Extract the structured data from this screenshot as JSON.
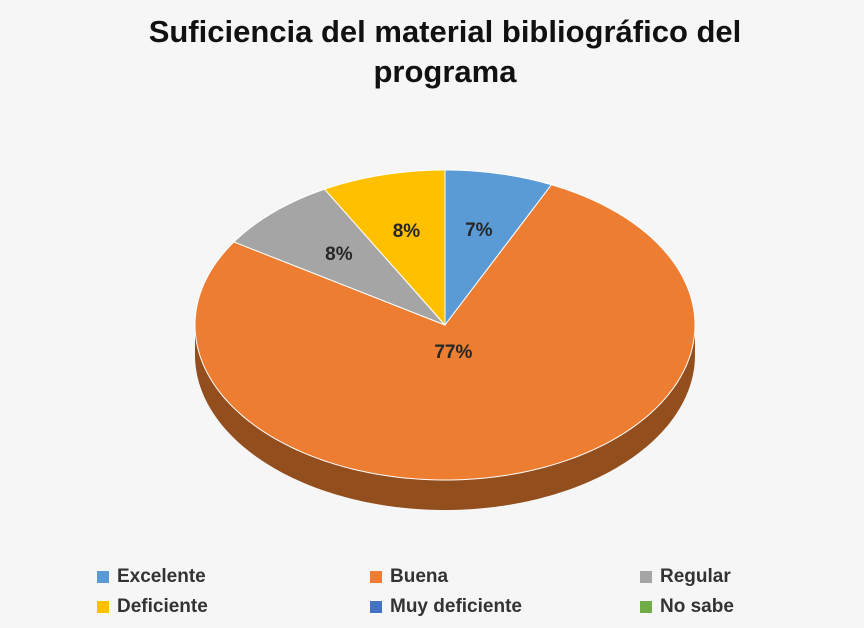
{
  "chart_data": {
    "type": "pie",
    "title": "Suficiencia del material bibliográfico del programa",
    "categories": [
      "Excelente",
      "Buena",
      "Regular",
      "Deficiente",
      "Muy deficiente",
      "No sabe"
    ],
    "values": [
      7,
      77,
      8,
      8,
      0,
      0
    ],
    "value_labels": [
      "7%",
      "77%",
      "8%",
      "8%",
      null,
      null
    ],
    "colors": [
      "#5b9bd5",
      "#ed7d31",
      "#a5a5a5",
      "#ffc000",
      "#4472c4",
      "#70ad47"
    ],
    "legend": "bottom"
  }
}
